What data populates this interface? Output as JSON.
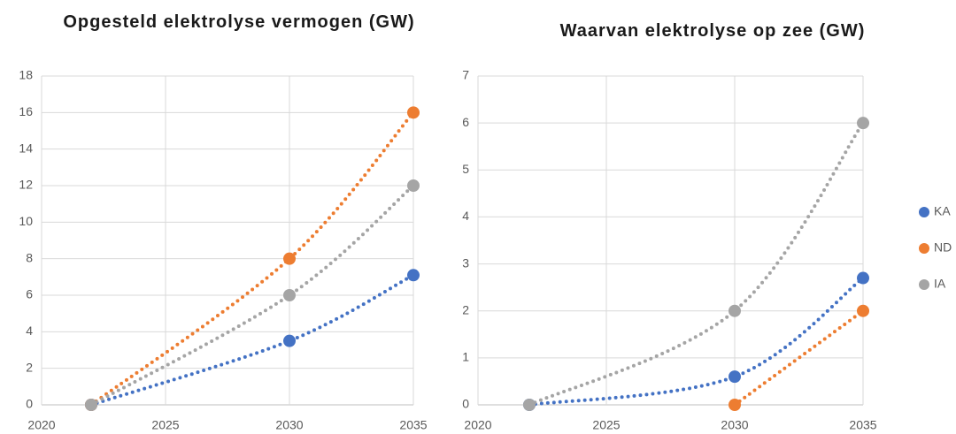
{
  "chart_data": [
    {
      "type": "scatter",
      "title": "Opgesteld elektrolyse vermogen (GW)",
      "x": [
        2022,
        2030,
        2035
      ],
      "series": [
        {
          "color": "#4472c4",
          "values": [
            0,
            3.5,
            7.1
          ]
        },
        {
          "color": "#ed7d31",
          "values": [
            0,
            8,
            16
          ]
        },
        {
          "color": "#a5a5a5",
          "values": [
            0,
            6,
            12
          ]
        }
      ],
      "xlim": [
        2020,
        2035
      ],
      "xticks": [
        2020,
        2025,
        2030,
        2035
      ],
      "ylim": [
        0,
        18
      ],
      "yticks": [
        0,
        2,
        4,
        6,
        8,
        10,
        12,
        14,
        16,
        18
      ],
      "grid": true
    },
    {
      "type": "scatter",
      "title": "Waarvan elektrolyse op zee (GW)",
      "x": [
        2022,
        2030,
        2035
      ],
      "series": [
        {
          "name": "KA",
          "color": "#4472c4",
          "values": [
            0,
            0.6,
            2.7
          ]
        },
        {
          "name": "ND",
          "color": "#ed7d31",
          "values": [
            null,
            0,
            2
          ]
        },
        {
          "name": "IA",
          "color": "#a5a5a5",
          "values": [
            0,
            2,
            6
          ]
        }
      ],
      "xlim": [
        2020,
        2035
      ],
      "xticks": [
        2020,
        2025,
        2030,
        2035
      ],
      "ylim": [
        0,
        7
      ],
      "yticks": [
        0,
        1,
        2,
        3,
        4,
        5,
        6,
        7
      ],
      "grid": true,
      "legend": "right"
    }
  ]
}
